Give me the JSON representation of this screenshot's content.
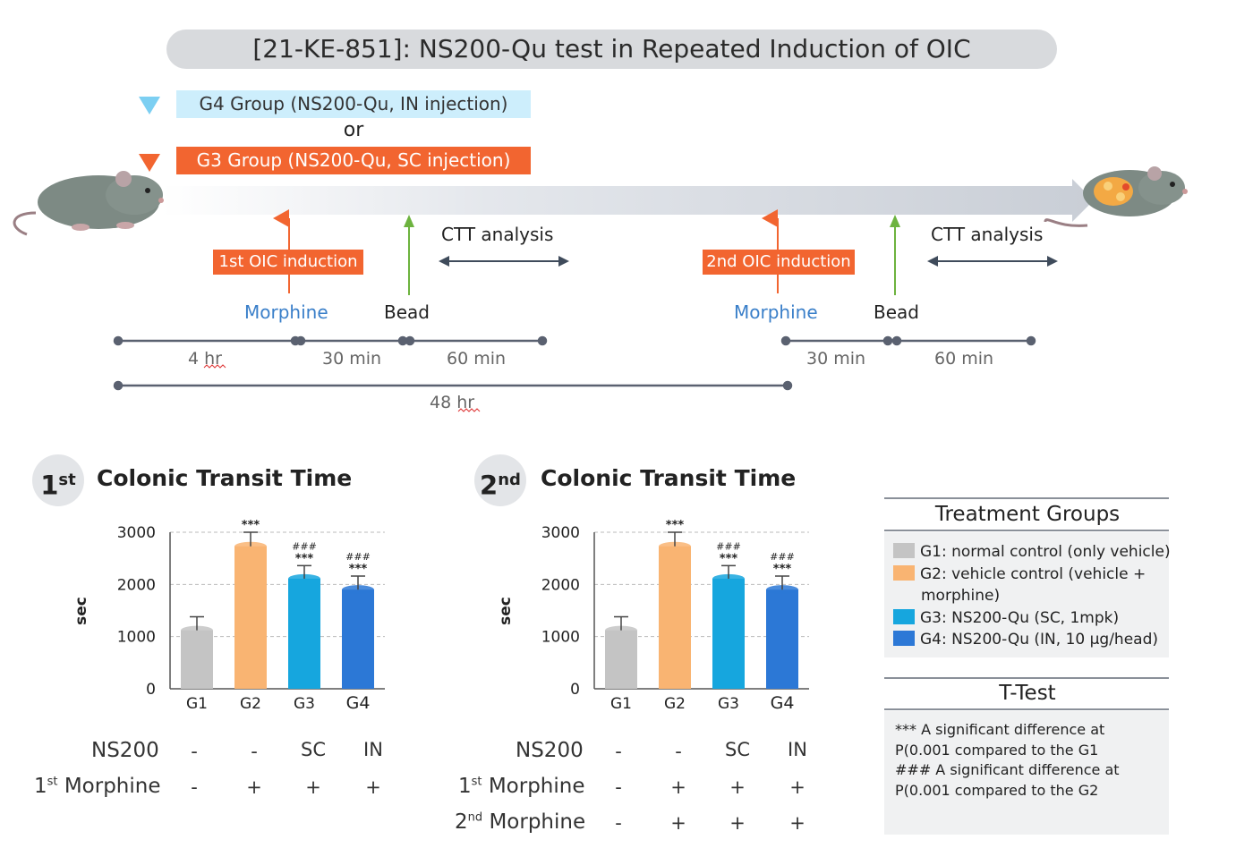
{
  "header": {
    "title": "[21-KE-851]: NS200-Qu test in Repeated Induction of OIC"
  },
  "protocol": {
    "g4_group": "G4 Group (NS200-Qu, IN injection)",
    "or": "or",
    "g3_group": "G3 Group (NS200-Qu, SC injection)",
    "first_induction": "1st OIC induction",
    "second_induction": "2nd OIC induction",
    "morphine": "Morphine",
    "bead": "Bead",
    "ctt": "CTT analysis",
    "t_4hr": "4 hr",
    "t_30min": "30 min",
    "t_60min": "60 min",
    "t_48hr": "48 hr",
    "colors": {
      "g4": "#cdeefc",
      "g3": "#f26530",
      "bead_arrow": "#6db33f"
    }
  },
  "charts": {
    "first": {
      "badge": "1",
      "badge_sup": "st",
      "title": "Colonic Transit Time"
    },
    "second": {
      "badge": "2",
      "badge_sup": "nd",
      "title": "Colonic Transit Time"
    }
  },
  "chart_data": [
    {
      "type": "bar",
      "title": "Colonic Transit Time",
      "ylabel": "sec",
      "ylim": [
        0,
        3000
      ],
      "yticks": [
        "0",
        "1000",
        "2000",
        "3000"
      ],
      "categories": [
        "G1",
        "G2",
        "G3",
        "G4"
      ],
      "values": [
        1120,
        2730,
        2110,
        1900
      ],
      "errors": [
        260,
        270,
        250,
        260
      ],
      "sig_star": [
        "",
        "***",
        "***",
        "***"
      ],
      "sig_hash": [
        "",
        "",
        "###",
        "###"
      ],
      "colors": [
        "#c4c4c4",
        "#f9b472",
        "#16a6de",
        "#2c78d6"
      ],
      "grid": true
    },
    {
      "type": "bar",
      "title": "Colonic Transit Time",
      "ylabel": "sec",
      "ylim": [
        0,
        3000
      ],
      "yticks": [
        "0",
        "1000",
        "2000",
        "3000"
      ],
      "categories": [
        "G1",
        "G2",
        "G3",
        "G4"
      ],
      "values": [
        1120,
        2730,
        2110,
        1900
      ],
      "errors": [
        260,
        270,
        250,
        260
      ],
      "sig_star": [
        "",
        "***",
        "***",
        "***"
      ],
      "sig_hash": [
        "",
        "",
        "###",
        "###"
      ],
      "colors": [
        "#c4c4c4",
        "#f9b472",
        "#16a6de",
        "#2c78d6"
      ],
      "grid": true
    }
  ],
  "tables": {
    "first": {
      "ns200": {
        "label": "NS200",
        "cells": [
          "-",
          "-",
          "SC",
          "IN"
        ]
      },
      "m1": {
        "label_pre": "1",
        "label_sup": "st",
        "label_post": " Morphine",
        "cells": [
          "-",
          "+",
          "+",
          "+"
        ]
      }
    },
    "second": {
      "ns200": {
        "label": "NS200",
        "cells": [
          "-",
          "-",
          "SC",
          "IN"
        ]
      },
      "m1": {
        "label_pre": "1",
        "label_sup": "st",
        "label_post": " Morphine",
        "cells": [
          "-",
          "+",
          "+",
          "+"
        ]
      },
      "m2": {
        "label_pre": "2",
        "label_sup": "nd",
        "label_post": " Morphine",
        "cells": [
          "-",
          "+",
          "+",
          "+"
        ]
      }
    }
  },
  "legend": {
    "heading": "Treatment Groups",
    "items": [
      {
        "line1": "G1: normal control (only vehicle)",
        "line2": "",
        "color": "#c4c4c4"
      },
      {
        "line1": "G2: vehicle control (vehicle +",
        "line2": "morphine)",
        "color": "#f9b472"
      },
      {
        "line1": "G3: NS200-Qu (SC, 1mpk)",
        "line2": "",
        "color": "#16a6de"
      },
      {
        "line1": "G4: NS200-Qu (IN, 10 μg/head)",
        "line2": "",
        "color": "#2c78d6"
      }
    ]
  },
  "ttest": {
    "heading": "T-Test",
    "lines": [
      "*** A significant difference at",
      "P(0.001 compared to the G1",
      "### A significant difference at",
      "P(0.001 compared to the G2"
    ]
  }
}
